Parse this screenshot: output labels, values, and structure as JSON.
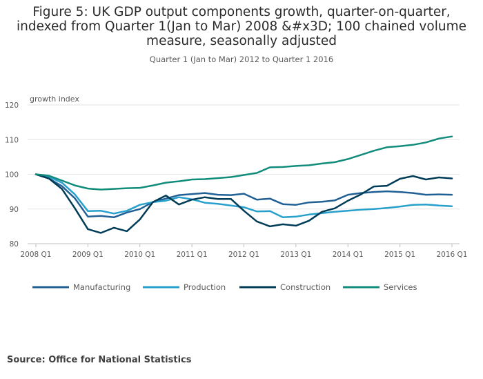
{
  "title": "Figure 5: UK GDP output components growth, quarter-on-quarter, indexed from Quarter 1(Jan to Mar) 2008 &#x3D; 100 chained volume measure, seasonally adjusted",
  "subtitle": "Quarter 1 (Jan to Mar) 2012 to Quarter 1 2016",
  "source": "Source: Office for National Statistics",
  "colors": {
    "manufacturing": "#206095",
    "production": "#27a0cc",
    "construction": "#003c57",
    "services": "#118c7b",
    "grid": "#e6e6e6",
    "axis": "#bfbfbf"
  },
  "chart_data": {
    "type": "line",
    "title": "Figure 5: UK GDP output components growth, quarter-on-quarter, indexed from Quarter 1(Jan to Mar) 2008 &#x3D; 100 chained volume measure, seasonally adjusted",
    "subtitle": "Quarter 1 (Jan to Mar) 2012 to Quarter 1 2016",
    "xlabel": "",
    "ylabel": "growth index",
    "ylim": [
      80,
      120
    ],
    "yticks": [
      80,
      90,
      100,
      110,
      120
    ],
    "grid": true,
    "legend": "bottom",
    "x": [
      "2008 Q1",
      "2008 Q2",
      "2008 Q3",
      "2008 Q4",
      "2009 Q1",
      "2009 Q2",
      "2009 Q3",
      "2009 Q4",
      "2010 Q1",
      "2010 Q2",
      "2010 Q3",
      "2010 Q4",
      "2011 Q1",
      "2011 Q2",
      "2011 Q3",
      "2011 Q4",
      "2012 Q1",
      "2012 Q2",
      "2012 Q3",
      "2012 Q4",
      "2013 Q1",
      "2013 Q2",
      "2013 Q3",
      "2013 Q4",
      "2014 Q1",
      "2014 Q2",
      "2014 Q3",
      "2014 Q4",
      "2015 Q1",
      "2015 Q2",
      "2015 Q3",
      "2015 Q4",
      "2016 Q1"
    ],
    "xtick_labels": [
      "2008 Q1",
      "2009 Q1",
      "2010 Q1",
      "2011 Q1",
      "2012 Q1",
      "2013 Q1",
      "2014 Q1",
      "2015 Q1",
      "2016 Q1"
    ],
    "series": [
      {
        "name": "Manufacturing",
        "color": "#206095",
        "values": [
          100,
          98.8,
          96.6,
          93.1,
          87.8,
          88.0,
          87.6,
          89.0,
          90.0,
          92.0,
          93.0,
          94.0,
          94.3,
          94.6,
          94.1,
          94.0,
          94.4,
          92.7,
          93.0,
          91.4,
          91.2,
          91.9,
          92.1,
          92.5,
          94.1,
          94.6,
          94.9,
          95.1,
          94.9,
          94.6,
          94.1,
          94.2,
          94.1
        ]
      },
      {
        "name": "Production",
        "color": "#27a0cc",
        "values": [
          100,
          99.3,
          97.6,
          94.2,
          89.4,
          89.5,
          88.7,
          89.5,
          91.2,
          92.0,
          92.4,
          93.4,
          92.8,
          91.8,
          91.5,
          91.0,
          90.5,
          89.3,
          89.4,
          87.6,
          87.8,
          88.4,
          88.8,
          89.2,
          89.5,
          89.8,
          90.0,
          90.3,
          90.7,
          91.2,
          91.3,
          91.0,
          90.8
        ]
      },
      {
        "name": "Construction",
        "color": "#003c57",
        "values": [
          100,
          98.8,
          95.8,
          90.2,
          84.2,
          83.1,
          84.6,
          83.6,
          87.0,
          92.0,
          93.9,
          91.3,
          92.7,
          93.4,
          92.9,
          92.9,
          89.5,
          86.4,
          85.0,
          85.6,
          85.2,
          86.6,
          89.2,
          90.2,
          92.4,
          94.2,
          96.5,
          96.7,
          98.7,
          99.5,
          98.5,
          99.1,
          98.8
        ]
      },
      {
        "name": "Services",
        "color": "#118c7b",
        "values": [
          100,
          99.6,
          98.2,
          96.8,
          95.9,
          95.6,
          95.8,
          96.0,
          96.1,
          96.8,
          97.6,
          98.0,
          98.5,
          98.6,
          98.9,
          99.2,
          99.8,
          100.4,
          102.0,
          102.1,
          102.4,
          102.6,
          103.1,
          103.5,
          104.4,
          105.6,
          106.8,
          107.8,
          108.1,
          108.5,
          109.2,
          110.3,
          110.9
        ]
      }
    ]
  }
}
